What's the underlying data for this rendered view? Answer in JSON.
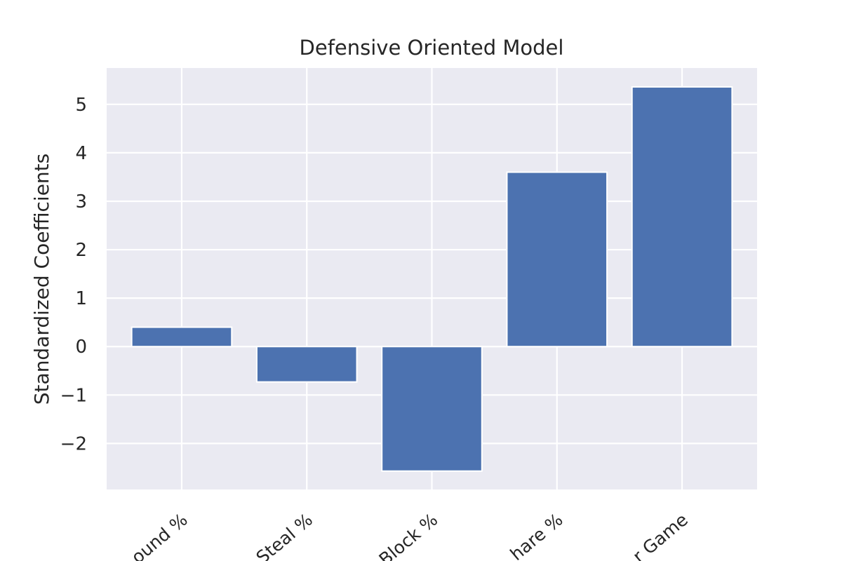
{
  "chart_data": {
    "type": "bar",
    "title": "Defensive Oriented Model",
    "xlabel": "",
    "ylabel": "Standardized Coefficients",
    "categories": [
      "ound %",
      "Steal %",
      "Block %",
      "hare %",
      "r Game"
    ],
    "values": [
      0.4,
      -0.73,
      -2.57,
      3.6,
      5.36
    ],
    "ylim": [
      -2.95,
      5.75
    ],
    "yticks": [
      -2,
      -1,
      0,
      1,
      2,
      3,
      4,
      5
    ],
    "ytick_labels": [
      "−2",
      "−1",
      "0",
      "1",
      "2",
      "3",
      "4",
      "5"
    ],
    "grid": true,
    "bar_color": "#4c72b0",
    "background_color": "#eaeaf2"
  }
}
